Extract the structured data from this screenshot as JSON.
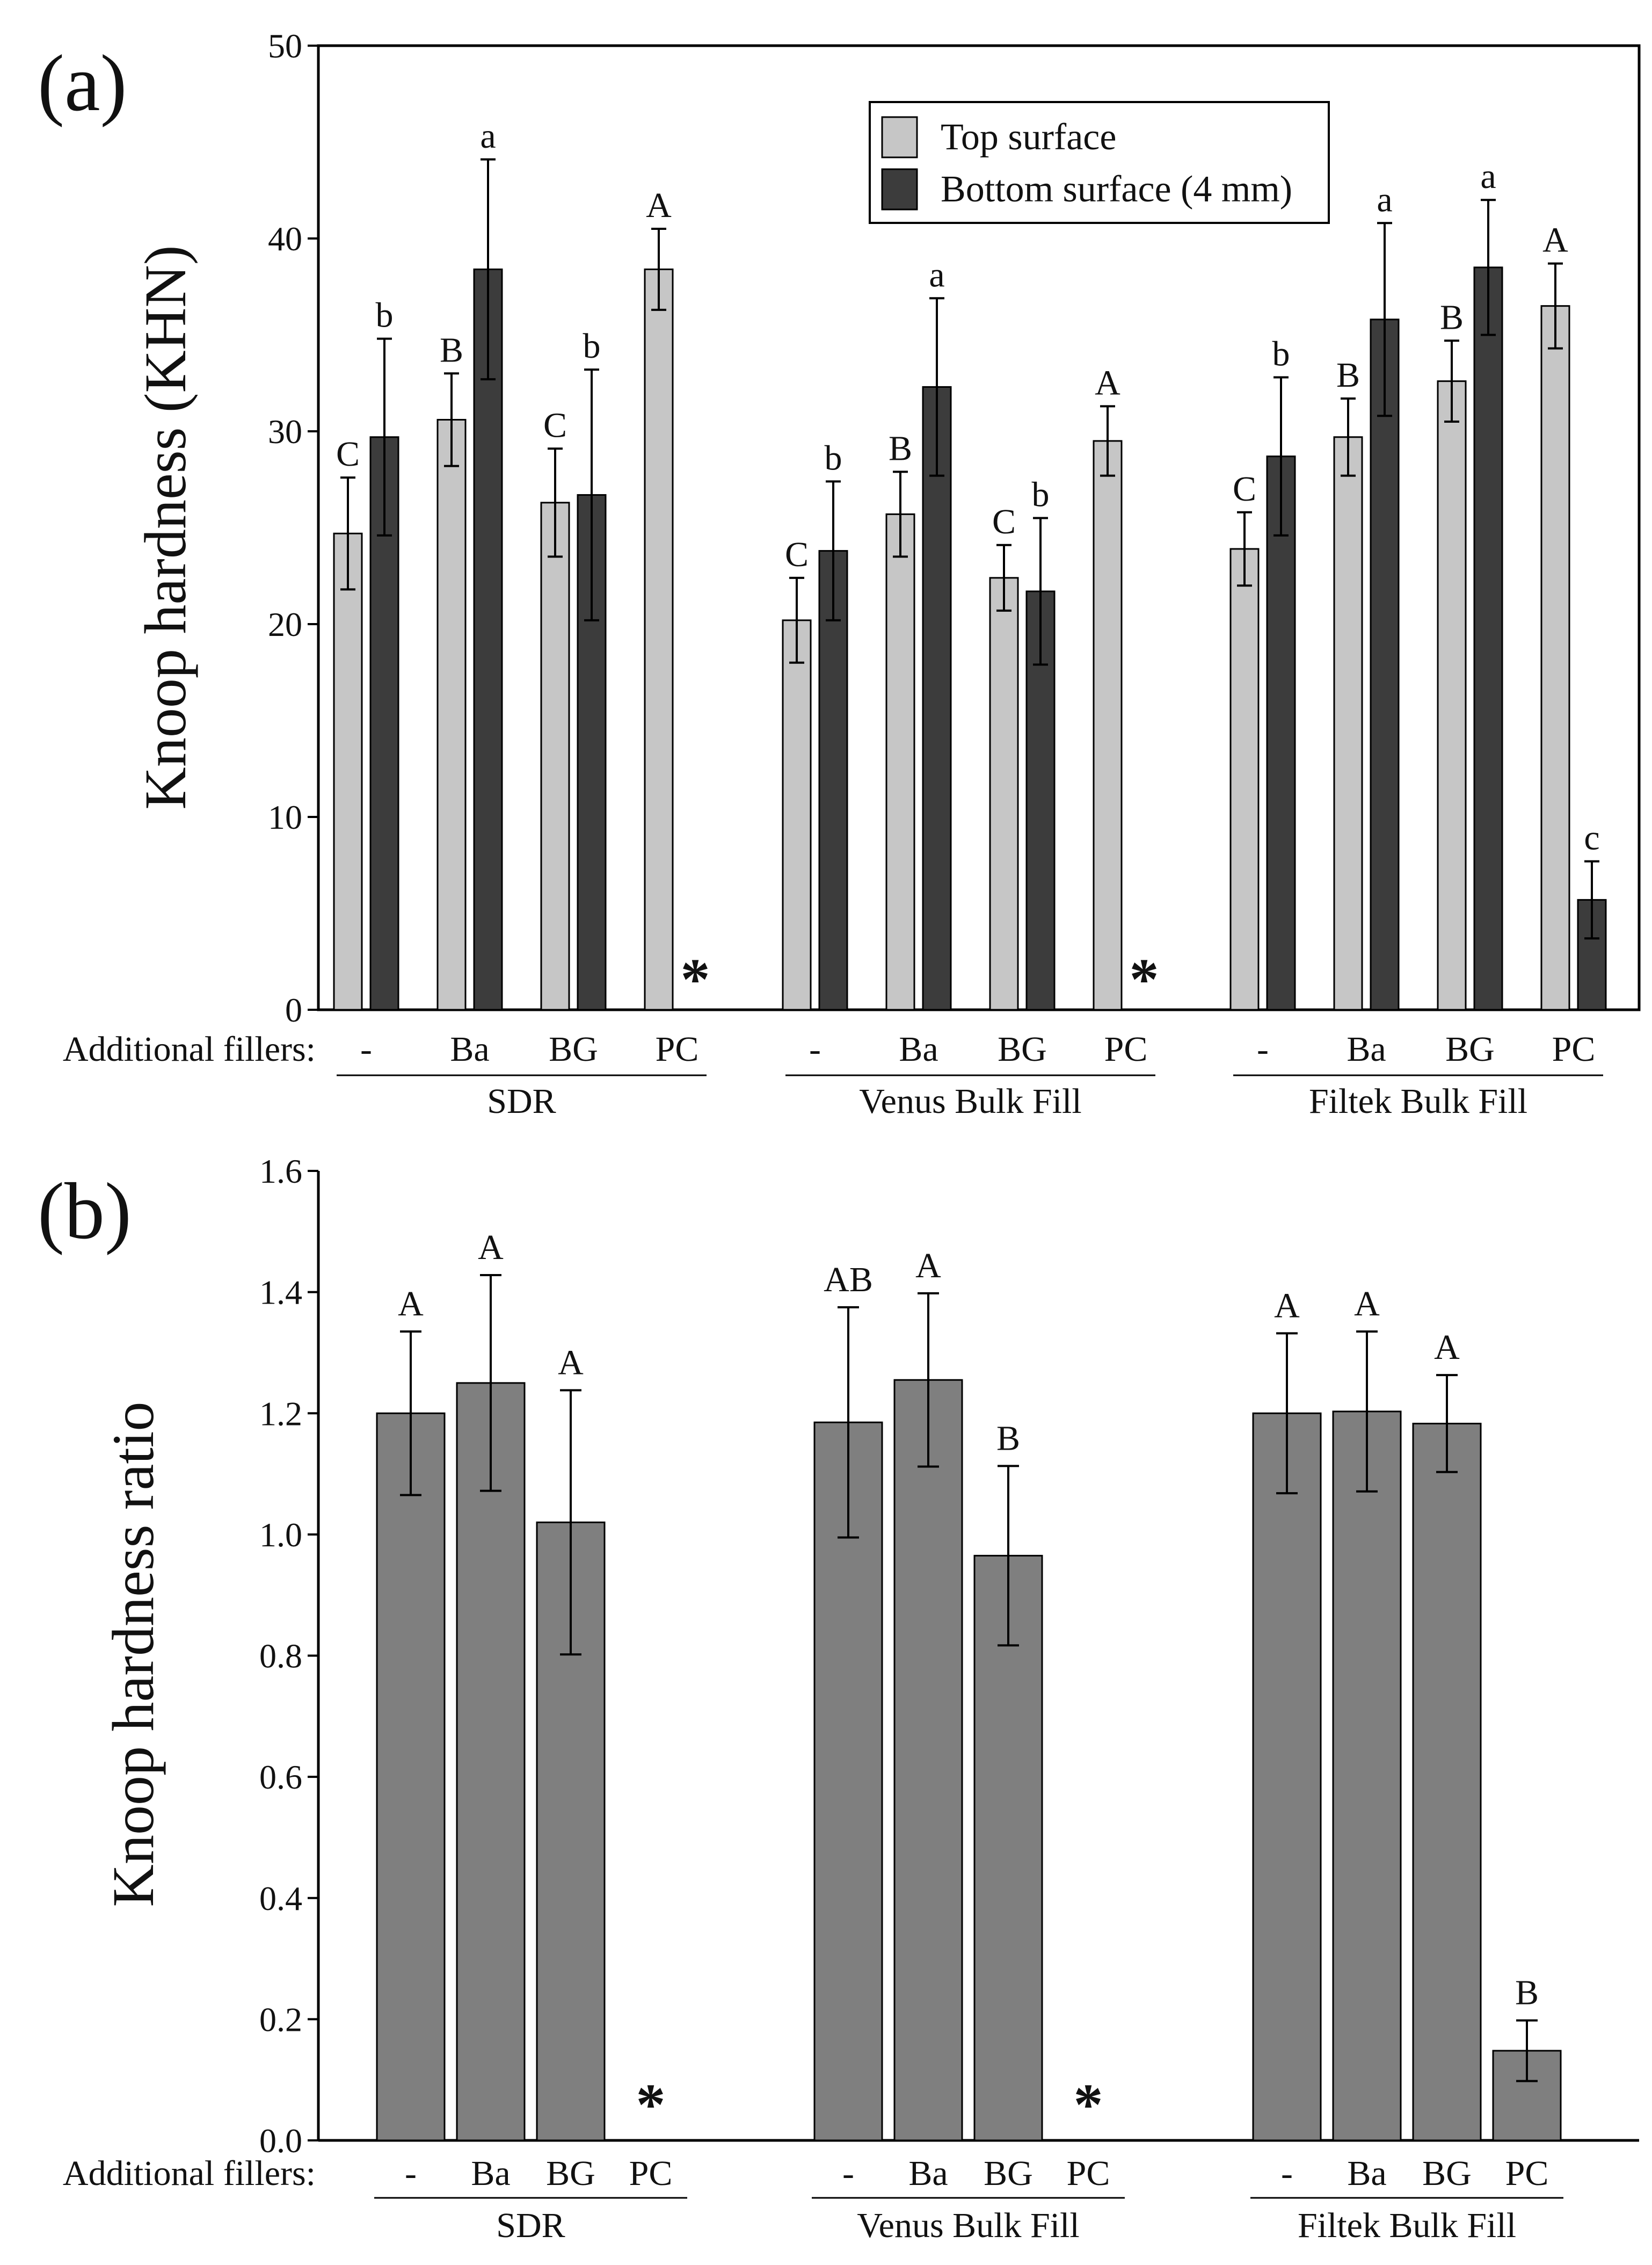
{
  "panel_a": {
    "panel_label": "(a)",
    "xlabel_prefix": "Additional fillers:",
    "legend": {
      "top": "Top surface",
      "bottom": "Bottom surface (4 mm)"
    }
  },
  "panel_b": {
    "panel_label": "(b)",
    "xlabel_prefix": "Additional fillers:"
  },
  "missing_marker": "*",
  "colors": {
    "top": "#c6c6c6",
    "bottom": "#3c3c3c",
    "ratio": "#7f7f7f",
    "axis": "#000000"
  },
  "chart_data": [
    {
      "type": "bar",
      "panel": "(a)",
      "ylabel": "Knoop hardness (KHN)",
      "ylim": [
        0,
        50
      ],
      "yticks": [
        0,
        10,
        20,
        30,
        40,
        50
      ],
      "legend_position": "top-center",
      "grid": false,
      "groups": [
        {
          "name": "SDR",
          "categories": [
            "-",
            "Ba",
            "BG",
            "PC"
          ],
          "series": [
            {
              "name": "Top surface",
              "values": [
                24.7,
                30.6,
                26.3,
                38.4
              ],
              "errors": [
                2.9,
                2.4,
                2.8,
                2.1
              ],
              "letters": [
                "C",
                "B",
                "C",
                "A"
              ]
            },
            {
              "name": "Bottom surface (4 mm)",
              "values": [
                29.7,
                38.4,
                26.7,
                null
              ],
              "errors": [
                5.1,
                5.7,
                6.5,
                null
              ],
              "letters": [
                "b",
                "a",
                "b",
                ""
              ]
            }
          ]
        },
        {
          "name": "Venus Bulk Fill",
          "categories": [
            "-",
            "Ba",
            "BG",
            "PC"
          ],
          "series": [
            {
              "name": "Top surface",
              "values": [
                20.2,
                25.7,
                22.4,
                29.5
              ],
              "errors": [
                2.2,
                2.2,
                1.7,
                1.8
              ],
              "letters": [
                "C",
                "B",
                "C",
                "A"
              ]
            },
            {
              "name": "Bottom surface (4 mm)",
              "values": [
                23.8,
                32.3,
                21.7,
                null
              ],
              "errors": [
                3.6,
                4.6,
                3.8,
                null
              ],
              "letters": [
                "b",
                "a",
                "b",
                ""
              ]
            }
          ]
        },
        {
          "name": "Filtek Bulk Fill",
          "categories": [
            "-",
            "Ba",
            "BG",
            "PC"
          ],
          "series": [
            {
              "name": "Top surface",
              "values": [
                23.9,
                29.7,
                32.6,
                36.5
              ],
              "errors": [
                1.9,
                2.0,
                2.1,
                2.2
              ],
              "letters": [
                "C",
                "B",
                "B",
                "A"
              ]
            },
            {
              "name": "Bottom surface (4 mm)",
              "values": [
                28.7,
                35.8,
                38.5,
                5.7
              ],
              "errors": [
                4.1,
                5.0,
                3.5,
                2.0
              ],
              "letters": [
                "b",
                "a",
                "a",
                "c"
              ]
            }
          ]
        }
      ],
      "missing_markers": [
        "SDR PC bottom",
        "Venus Bulk Fill PC bottom"
      ]
    },
    {
      "type": "bar",
      "panel": "(b)",
      "ylabel": "Knoop hardness ratio",
      "ylim": [
        0,
        1.6
      ],
      "yticks": [
        0.0,
        0.2,
        0.4,
        0.6,
        0.8,
        1.0,
        1.2,
        1.4,
        1.6
      ],
      "grid": false,
      "groups": [
        {
          "name": "SDR",
          "categories": [
            "-",
            "Ba",
            "BG",
            "PC"
          ],
          "values": [
            1.2,
            1.25,
            1.02,
            null
          ],
          "errors": [
            0.135,
            0.178,
            0.218,
            null
          ],
          "letters": [
            "A",
            "A",
            "A",
            ""
          ]
        },
        {
          "name": "Venus Bulk Fill",
          "categories": [
            "-",
            "Ba",
            "BG",
            "PC"
          ],
          "values": [
            1.185,
            1.255,
            0.965,
            null
          ],
          "errors": [
            0.19,
            0.143,
            0.148,
            null
          ],
          "letters": [
            "AB",
            "A",
            "B",
            ""
          ]
        },
        {
          "name": "Filtek Bulk Fill",
          "categories": [
            "-",
            "Ba",
            "BG",
            "PC"
          ],
          "values": [
            1.2,
            1.203,
            1.183,
            0.148
          ],
          "errors": [
            0.132,
            0.132,
            0.08,
            0.05
          ],
          "letters": [
            "A",
            "A",
            "A",
            "B"
          ]
        }
      ],
      "missing_markers": [
        "SDR PC",
        "Venus Bulk Fill PC"
      ]
    }
  ]
}
